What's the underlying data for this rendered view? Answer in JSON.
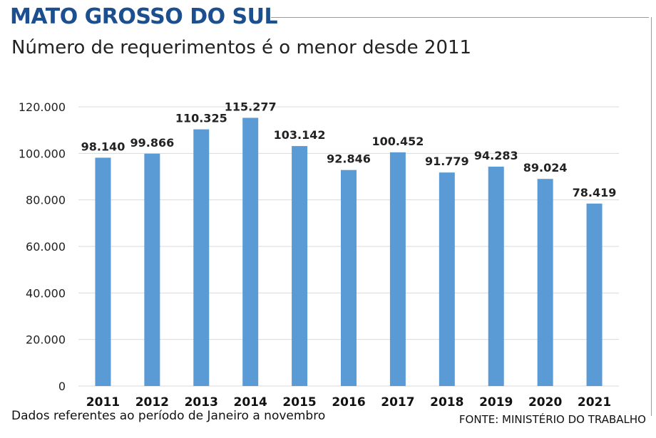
{
  "header": {
    "title": "MATO GROSSO DO SUL",
    "subtitle": "Número de requerimentos é o menor desde 2011"
  },
  "footer": {
    "note": "Dados referentes ao período de Janeiro a novembro",
    "source": "FONTE: MINISTÉRIO DO TRABALHO"
  },
  "colors": {
    "bar": "#5b9bd5",
    "title": "#1b4f8f",
    "grid": "#d9d9d9"
  },
  "chart_data": {
    "type": "bar",
    "title": "Número de requerimentos é o menor desde 2011",
    "categories": [
      "2011",
      "2012",
      "2013",
      "2014",
      "2015",
      "2016",
      "2017",
      "2018",
      "2019",
      "2020",
      "2021"
    ],
    "values": [
      98140,
      99866,
      110325,
      115277,
      103142,
      92846,
      100452,
      91779,
      94283,
      89024,
      78419
    ],
    "data_labels": [
      "98.140",
      "99.866",
      "110.325",
      "115.277",
      "103.142",
      "92.846",
      "100.452",
      "91.779",
      "94.283",
      "89.024",
      "78.419"
    ],
    "ylim": [
      0,
      120000
    ],
    "yticks": [
      0,
      20000,
      40000,
      60000,
      80000,
      100000,
      120000
    ],
    "ytick_labels": [
      "0",
      "20.000",
      "40.000",
      "60.000",
      "80.000",
      "100.000",
      "120.000"
    ],
    "grid": true,
    "xlabel": "",
    "ylabel": ""
  }
}
